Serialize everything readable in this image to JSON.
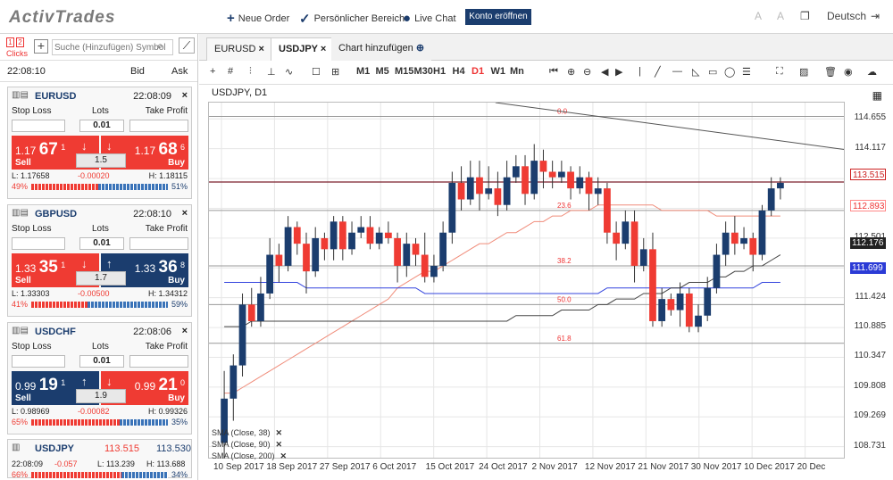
{
  "brand": "ActivTrades",
  "topnav": {
    "new_order": "Neue Order",
    "personal": "Persönlicher Bereich",
    "chat": "Live Chat",
    "open_account": "Konto eröffnen",
    "language": "Deutsch"
  },
  "sidebar": {
    "clicks": [
      "1",
      "2"
    ],
    "clicks_label": "Clicks",
    "search_placeholder": "Suche (Hinzufügen) Symbol",
    "time": "22:08:10",
    "bid": "Bid",
    "ask": "Ask"
  },
  "cards": [
    {
      "symbol": "EURUSD",
      "time": "22:08:09",
      "sl": "Stop Loss",
      "lots": "Lots",
      "tp": "Take Profit",
      "lot_value": "0.01",
      "sell_big": "1.17",
      "sell_main": "67",
      "sell_sup": "1",
      "buy_big": "1.17",
      "buy_main": "68",
      "buy_sup": "6",
      "sell_label": "Sell",
      "buy_label": "Buy",
      "spread": "1.5",
      "low": "L: 1.17658",
      "change": "-0.00020",
      "high": "H: 1.18115",
      "left_pct": "49%",
      "right_pct": "51%",
      "right_fraction": 0.51
    },
    {
      "symbol": "GBPUSD",
      "time": "22:08:10",
      "sl": "Stop Loss",
      "lots": "Lots",
      "tp": "Take Profit",
      "lot_value": "0.01",
      "sell_big": "1.33",
      "sell_main": "35",
      "sell_sup": "1",
      "buy_big": "1.33",
      "buy_main": "36",
      "buy_sup": "8",
      "sell_label": "Sell",
      "buy_label": "Buy",
      "spread": "1.7",
      "low": "L: 1.33303",
      "change": "-0.00500",
      "high": "H: 1.34312",
      "left_pct": "41%",
      "right_pct": "59%",
      "right_fraction": 0.59
    },
    {
      "symbol": "USDCHF",
      "time": "22:08:06",
      "sl": "Stop Loss",
      "lots": "Lots",
      "tp": "Take Profit",
      "lot_value": "0.01",
      "sell_big": "0.99",
      "sell_main": "19",
      "sell_sup": "1",
      "buy_big": "0.99",
      "buy_main": "21",
      "buy_sup": "0",
      "sell_label": "Sell",
      "buy_label": "Buy",
      "spread": "1.9",
      "low": "L: 0.98969",
      "change": "-0.00082",
      "high": "H: 0.99326",
      "left_pct": "65%",
      "right_pct": "35%",
      "right_fraction": 0.35
    }
  ],
  "mini": {
    "symbol": "USDJPY",
    "bid": "113.515",
    "ask": "113.530",
    "time": "22:08:09",
    "change": "-0.057",
    "low": "L: 113.239",
    "high": "H: 113.688",
    "left_pct": "66%",
    "right_pct": "34%",
    "right_fraction": 0.34
  },
  "tabs": [
    "EURUSD",
    "USDJPY",
    "Chart hinzufügen"
  ],
  "toolbar": {
    "periods": [
      "M1",
      "M5",
      "M15",
      "M30",
      "H1",
      "H4",
      "D1",
      "W1",
      "Mn"
    ]
  },
  "chart_title": "USDJPY, D1",
  "indicators": [
    "SMA (Close, 38)",
    "SMA (Close, 90)",
    "SMA (Close, 200)"
  ],
  "fib_labels": [
    "0.0",
    "23.6",
    "38.2",
    "50.0",
    "61.8"
  ],
  "price_tags": {
    "current": "113.515",
    "sma38": "112.893",
    "sma200": "112.176",
    "sma90": "111.699"
  },
  "chart_data": {
    "type": "candlestick",
    "y_ticks": [
      "114.655",
      "114.117",
      "113.578",
      "113.039",
      "112.501",
      "111.962",
      "111.424",
      "110.885",
      "110.347",
      "109.808",
      "109.269",
      "108.731"
    ],
    "x_ticks": [
      "10 Sep 2017",
      "18 Sep 2017",
      "27 Sep 2017",
      "6 Oct 2017",
      "15 Oct 2017",
      "24 Oct 2017",
      "2 Nov 2017",
      "12 Nov 2017",
      "21 Nov 2017",
      "30 Nov 2017",
      "10 Dec 2017",
      "20 Dec"
    ],
    "ylim": [
      108.5,
      114.95
    ],
    "candles": [
      [
        108.8,
        109.6,
        108.5,
        110.1
      ],
      [
        109.6,
        110.2,
        109.2,
        110.4
      ],
      [
        110.2,
        111.3,
        110.0,
        111.5
      ],
      [
        111.3,
        111.0,
        110.9,
        111.6
      ],
      [
        111.0,
        111.5,
        110.9,
        111.8
      ],
      [
        111.5,
        112.2,
        111.4,
        112.5
      ],
      [
        112.2,
        112.0,
        111.7,
        112.4
      ],
      [
        112.0,
        112.7,
        111.9,
        112.9
      ],
      [
        112.7,
        112.4,
        112.2,
        112.8
      ],
      [
        112.4,
        111.9,
        111.5,
        112.6
      ],
      [
        111.9,
        112.5,
        111.8,
        112.7
      ],
      [
        112.5,
        112.3,
        112.1,
        112.6
      ],
      [
        112.3,
        112.8,
        112.1,
        112.9
      ],
      [
        112.8,
        112.3,
        112.1,
        112.9
      ],
      [
        112.3,
        112.6,
        112.2,
        112.8
      ],
      [
        112.6,
        112.7,
        112.5,
        112.9
      ],
      [
        112.7,
        112.4,
        112.3,
        112.9
      ],
      [
        112.4,
        112.6,
        112.3,
        112.7
      ],
      [
        112.6,
        112.5,
        112.4,
        112.8
      ],
      [
        112.5,
        112.0,
        111.7,
        112.6
      ],
      [
        112.0,
        112.4,
        111.8,
        112.6
      ],
      [
        112.4,
        112.2,
        112.0,
        112.5
      ],
      [
        112.2,
        111.8,
        111.7,
        112.6
      ],
      [
        111.8,
        112.0,
        111.7,
        112.2
      ],
      [
        112.0,
        112.6,
        111.9,
        112.8
      ],
      [
        112.6,
        113.5,
        112.4,
        113.7
      ],
      [
        113.5,
        113.2,
        113.0,
        113.8
      ],
      [
        113.2,
        113.6,
        113.1,
        113.9
      ],
      [
        113.6,
        113.3,
        113.0,
        113.9
      ],
      [
        113.3,
        113.4,
        113.2,
        113.8
      ],
      [
        113.4,
        113.1,
        112.9,
        113.7
      ],
      [
        113.1,
        113.6,
        113.0,
        113.9
      ],
      [
        113.6,
        113.8,
        113.5,
        114.0
      ],
      [
        113.8,
        113.3,
        113.1,
        114.0
      ],
      [
        113.3,
        113.9,
        113.2,
        114.2
      ],
      [
        113.9,
        113.7,
        113.4,
        114.1
      ],
      [
        113.7,
        113.6,
        113.4,
        113.9
      ],
      [
        113.6,
        113.7,
        113.5,
        113.9
      ],
      [
        113.7,
        113.4,
        113.2,
        113.8
      ],
      [
        113.4,
        113.6,
        113.3,
        113.8
      ],
      [
        113.6,
        113.3,
        113.0,
        113.7
      ],
      [
        113.3,
        113.4,
        113.1,
        113.6
      ],
      [
        113.4,
        112.6,
        112.4,
        113.5
      ],
      [
        112.6,
        112.4,
        112.1,
        112.8
      ],
      [
        112.4,
        112.8,
        112.3,
        113.0
      ],
      [
        112.8,
        112.0,
        111.7,
        113.0
      ],
      [
        112.0,
        112.3,
        111.9,
        112.5
      ],
      [
        112.3,
        111.0,
        110.9,
        112.6
      ],
      [
        111.0,
        111.4,
        110.9,
        111.6
      ],
      [
        111.4,
        111.2,
        111.1,
        111.5
      ],
      [
        111.2,
        111.5,
        110.9,
        111.7
      ],
      [
        111.5,
        110.9,
        110.8,
        111.6
      ],
      [
        110.9,
        111.1,
        110.8,
        111.3
      ],
      [
        111.1,
        111.6,
        111.0,
        111.8
      ],
      [
        111.6,
        112.2,
        111.5,
        112.4
      ],
      [
        112.2,
        112.6,
        112.0,
        112.8
      ],
      [
        112.6,
        112.4,
        112.2,
        112.9
      ],
      [
        112.4,
        112.5,
        112.3,
        112.7
      ],
      [
        112.5,
        112.2,
        111.9,
        112.6
      ],
      [
        112.2,
        113.0,
        112.1,
        113.1
      ],
      [
        113.0,
        113.4,
        112.9,
        113.6
      ],
      [
        113.4,
        113.5,
        113.2,
        113.6
      ]
    ],
    "sma38": [
      109.7,
      109.7,
      109.8,
      109.9,
      110.0,
      110.1,
      110.2,
      110.3,
      110.4,
      110.5,
      110.6,
      110.7,
      110.8,
      110.9,
      111.0,
      111.1,
      111.2,
      111.3,
      111.4,
      111.6,
      111.7,
      111.8,
      111.9,
      111.9,
      112.0,
      112.1,
      112.2,
      112.3,
      112.4,
      112.4,
      112.5,
      112.6,
      112.6,
      112.7,
      112.8,
      112.8,
      112.9,
      112.9,
      113.0,
      113.0,
      113.0,
      113.1,
      113.1,
      113.1,
      113.1,
      113.1,
      113.1,
      113.1,
      113.0,
      113.0,
      113.0,
      113.0,
      113.0,
      113.0,
      112.9,
      112.9,
      112.9,
      112.9,
      112.9,
      112.9,
      112.9,
      112.9
    ],
    "sma90": [
      111.7,
      111.7,
      111.7,
      111.7,
      111.7,
      111.7,
      111.7,
      111.7,
      111.7,
      111.6,
      111.6,
      111.6,
      111.6,
      111.6,
      111.6,
      111.6,
      111.6,
      111.6,
      111.6,
      111.6,
      111.6,
      111.6,
      111.5,
      111.5,
      111.5,
      111.5,
      111.5,
      111.5,
      111.5,
      111.5,
      111.5,
      111.5,
      111.5,
      111.5,
      111.5,
      111.5,
      111.5,
      111.5,
      111.5,
      111.5,
      111.5,
      111.5,
      111.6,
      111.6,
      111.6,
      111.6,
      111.6,
      111.6,
      111.6,
      111.6,
      111.6,
      111.6,
      111.6,
      111.6,
      111.6,
      111.6,
      111.6,
      111.6,
      111.6,
      111.7,
      111.7,
      111.7
    ],
    "sma200": [
      110.9,
      110.9,
      110.9,
      111.0,
      111.0,
      111.0,
      111.0,
      111.0,
      111.0,
      111.0,
      111.0,
      111.0,
      111.0,
      111.0,
      111.0,
      111.0,
      111.0,
      111.0,
      111.0,
      111.0,
      111.0,
      111.0,
      111.0,
      111.0,
      111.0,
      111.0,
      111.0,
      111.0,
      111.0,
      111.0,
      111.0,
      111.0,
      111.1,
      111.1,
      111.1,
      111.1,
      111.1,
      111.2,
      111.2,
      111.2,
      111.2,
      111.3,
      111.3,
      111.4,
      111.4,
      111.4,
      111.5,
      111.5,
      111.5,
      111.6,
      111.6,
      111.7,
      111.7,
      111.7,
      111.8,
      111.8,
      111.9,
      111.9,
      112.0,
      112.0,
      112.1,
      112.2
    ],
    "trendline": [
      [
        0.45,
        114.95
      ],
      [
        1.0,
        114.1
      ]
    ],
    "fib_levels": [
      114.7,
      113.0,
      112.0,
      111.3,
      110.6
    ],
    "current_price": 113.515,
    "up_color": "#1b3d6e",
    "down_color": "#ef3b33"
  }
}
